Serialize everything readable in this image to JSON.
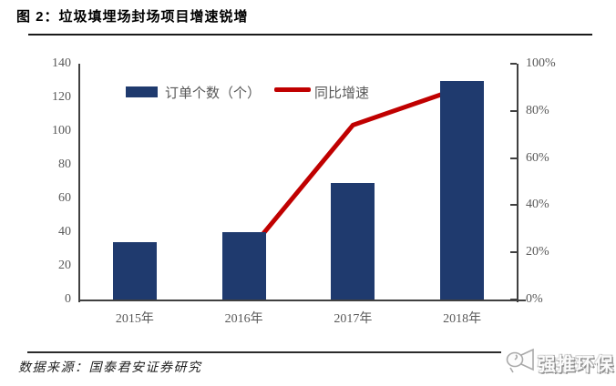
{
  "header": {
    "title": "图 2：垃圾填埋场封场项目增速锐增"
  },
  "legend": {
    "bar_label": "订单个数（个）",
    "line_label": "同比增速"
  },
  "footer": {
    "source": "数据来源：国泰君安证券研究",
    "logo_text": "强推环保"
  },
  "colors": {
    "bar": "#1F3A6E",
    "line": "#C00000",
    "axis": "#404040",
    "tick_label": "#595959"
  },
  "chart_data": {
    "type": "bar",
    "title": "图 2：垃圾填埋场封场项目增速锐增",
    "categories": [
      "2015年",
      "2016年",
      "2017年",
      "2018年"
    ],
    "series": [
      {
        "name": "订单个数（个）",
        "type": "bar",
        "axis": "left",
        "values": [
          34,
          40,
          69,
          130
        ]
      },
      {
        "name": "同比增速",
        "type": "line",
        "axis": "right",
        "unit": "%",
        "values": [
          null,
          18,
          74,
          90
        ]
      }
    ],
    "left_axis": {
      "min": 0,
      "max": 140,
      "ticks": [
        "0",
        "20",
        "40",
        "60",
        "80",
        "100",
        "120",
        "140"
      ]
    },
    "right_axis": {
      "min": 0,
      "max": 100,
      "ticks": [
        "0%",
        "20%",
        "40%",
        "60%",
        "80%",
        "100%"
      ]
    },
    "grid": false,
    "legend_position": "top-left-inside"
  }
}
